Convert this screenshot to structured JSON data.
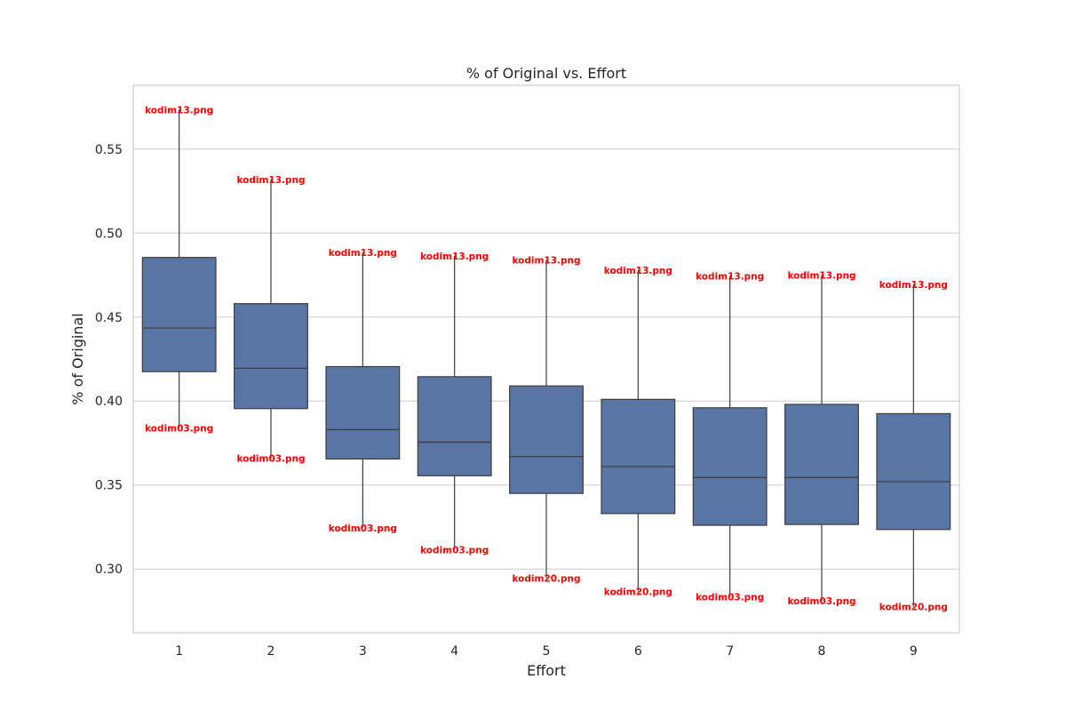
{
  "chart_data": {
    "type": "box",
    "title": "% of Original vs. Effort",
    "xlabel": "Effort",
    "ylabel": "% of Original",
    "categories": [
      "1",
      "2",
      "3",
      "4",
      "5",
      "6",
      "7",
      "8",
      "9"
    ],
    "ylim": [
      0.262,
      0.588
    ],
    "yticks": [
      0.3,
      0.35,
      0.4,
      0.45,
      0.5,
      0.55
    ],
    "ytick_labels": [
      "0.30",
      "0.35",
      "0.40",
      "0.45",
      "0.50",
      "0.55"
    ],
    "grid": "y",
    "boxes": [
      {
        "x": "1",
        "whisker_low": 0.384,
        "q1": 0.4175,
        "median": 0.4435,
        "q3": 0.4855,
        "whisker_high": 0.5735
      },
      {
        "x": "2",
        "whisker_low": 0.366,
        "q1": 0.3955,
        "median": 0.4195,
        "q3": 0.458,
        "whisker_high": 0.532
      },
      {
        "x": "3",
        "whisker_low": 0.3245,
        "q1": 0.3655,
        "median": 0.383,
        "q3": 0.4205,
        "whisker_high": 0.4885
      },
      {
        "x": "4",
        "whisker_low": 0.3115,
        "q1": 0.3555,
        "median": 0.3755,
        "q3": 0.4145,
        "whisker_high": 0.4865
      },
      {
        "x": "5",
        "whisker_low": 0.2945,
        "q1": 0.345,
        "median": 0.367,
        "q3": 0.409,
        "whisker_high": 0.484
      },
      {
        "x": "6",
        "whisker_low": 0.2865,
        "q1": 0.333,
        "median": 0.361,
        "q3": 0.401,
        "whisker_high": 0.478
      },
      {
        "x": "7",
        "whisker_low": 0.2835,
        "q1": 0.326,
        "median": 0.3545,
        "q3": 0.396,
        "whisker_high": 0.4745
      },
      {
        "x": "8",
        "whisker_low": 0.281,
        "q1": 0.3265,
        "median": 0.3545,
        "q3": 0.398,
        "whisker_high": 0.475
      },
      {
        "x": "9",
        "whisker_low": 0.2775,
        "q1": 0.3235,
        "median": 0.352,
        "q3": 0.3925,
        "whisker_high": 0.4695
      }
    ],
    "annotations": [
      {
        "x": "1",
        "y": 0.5735,
        "text": "kodim13.png"
      },
      {
        "x": "1",
        "y": 0.384,
        "text": "kodim03.png"
      },
      {
        "x": "2",
        "y": 0.532,
        "text": "kodim13.png"
      },
      {
        "x": "2",
        "y": 0.366,
        "text": "kodim03.png"
      },
      {
        "x": "3",
        "y": 0.4885,
        "text": "kodim13.png"
      },
      {
        "x": "3",
        "y": 0.3245,
        "text": "kodim03.png"
      },
      {
        "x": "4",
        "y": 0.4865,
        "text": "kodim13.png"
      },
      {
        "x": "4",
        "y": 0.3115,
        "text": "kodim03.png"
      },
      {
        "x": "5",
        "y": 0.484,
        "text": "kodim13.png"
      },
      {
        "x": "5",
        "y": 0.2945,
        "text": "kodim20.png"
      },
      {
        "x": "6",
        "y": 0.478,
        "text": "kodim13.png"
      },
      {
        "x": "6",
        "y": 0.2865,
        "text": "kodim20.png"
      },
      {
        "x": "7",
        "y": 0.4745,
        "text": "kodim13.png"
      },
      {
        "x": "7",
        "y": 0.2835,
        "text": "kodim03.png"
      },
      {
        "x": "8",
        "y": 0.475,
        "text": "kodim13.png"
      },
      {
        "x": "8",
        "y": 0.281,
        "text": "kodim03.png"
      },
      {
        "x": "9",
        "y": 0.4695,
        "text": "kodim13.png"
      },
      {
        "x": "9",
        "y": 0.2775,
        "text": "kodim20.png"
      }
    ],
    "colors": {
      "box_fill": "#5875a4",
      "line": "#3d3d3d",
      "grid": "#cccccc",
      "frame": "#cccccc",
      "annotation": "#ff0000"
    }
  }
}
